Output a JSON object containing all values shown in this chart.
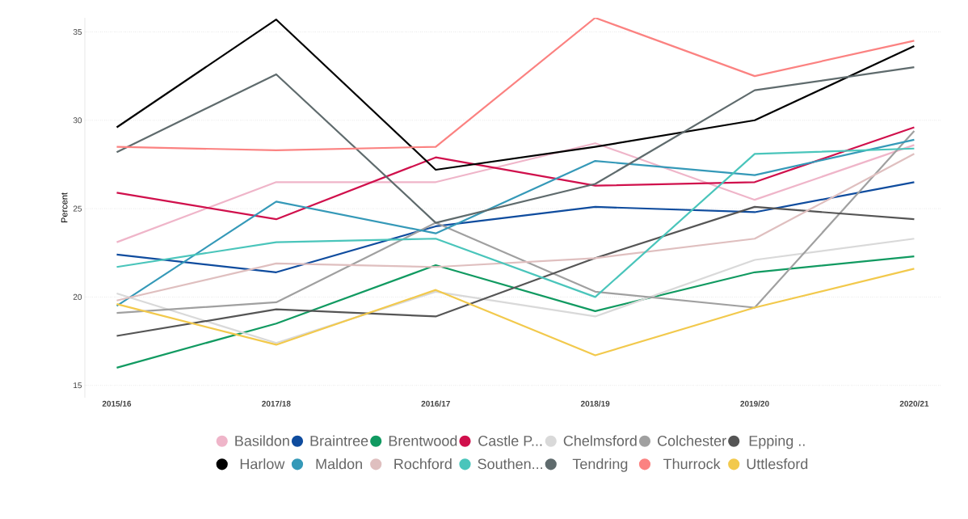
{
  "chart_data": {
    "type": "line",
    "ylabel": "Percent",
    "categories": [
      "2015/16",
      "2017/18",
      "2016/17",
      "2018/19",
      "2019/20",
      "2020/21"
    ],
    "ylim": [
      14.3,
      35.8
    ],
    "yticks": [
      15,
      20,
      25,
      30,
      35
    ],
    "grid": "y",
    "legend": "bottom",
    "series": [
      {
        "name": "Basildon",
        "color": "#efb5c9",
        "values": [
          23.1,
          26.5,
          26.5,
          28.7,
          25.5,
          28.6
        ]
      },
      {
        "name": "Braintree",
        "color": "#0f4c9e",
        "values": [
          22.4,
          21.4,
          24.0,
          25.1,
          24.8,
          26.5
        ]
      },
      {
        "name": "Brentwood",
        "color": "#119a61",
        "values": [
          16.0,
          18.5,
          21.8,
          19.2,
          21.4,
          22.3
        ]
      },
      {
        "name": "Castle P...",
        "color": "#d0104c",
        "values": [
          25.9,
          24.4,
          27.9,
          26.3,
          26.5,
          29.6
        ]
      },
      {
        "name": "Chelmsford",
        "color": "#d9d9d9",
        "values": [
          20.2,
          17.4,
          20.3,
          18.9,
          22.1,
          23.3
        ]
      },
      {
        "name": "Colchester",
        "color": "#a0a0a0",
        "values": [
          19.1,
          19.7,
          24.2,
          20.3,
          19.4,
          29.4
        ]
      },
      {
        "name": "Epping ..",
        "color": "#555555",
        "values": [
          17.8,
          19.3,
          18.9,
          22.2,
          25.1,
          24.4
        ]
      },
      {
        "name": "Harlow",
        "color": "#000000",
        "values": [
          29.6,
          35.7,
          27.2,
          28.5,
          30.0,
          34.2
        ]
      },
      {
        "name": "Maldon",
        "color": "#3599b8",
        "values": [
          19.5,
          25.4,
          23.6,
          27.7,
          26.9,
          28.9
        ]
      },
      {
        "name": "Rochford",
        "color": "#dfbfbf",
        "values": [
          19.8,
          21.9,
          21.7,
          22.2,
          23.3,
          28.1
        ]
      },
      {
        "name": "Southen...",
        "color": "#4ac5bb",
        "values": [
          21.7,
          23.1,
          23.3,
          20.0,
          28.1,
          28.4
        ]
      },
      {
        "name": "Tendring",
        "color": "#5f6b6d",
        "values": [
          28.2,
          32.6,
          24.2,
          26.4,
          31.7,
          33.0
        ]
      },
      {
        "name": "Thurrock",
        "color": "#fb8281",
        "values": [
          28.5,
          28.3,
          28.5,
          35.8,
          32.5,
          34.5
        ]
      },
      {
        "name": "Uttlesford",
        "color": "#f2c94c",
        "values": [
          19.6,
          17.3,
          20.4,
          16.7,
          19.4,
          21.6
        ]
      }
    ]
  }
}
